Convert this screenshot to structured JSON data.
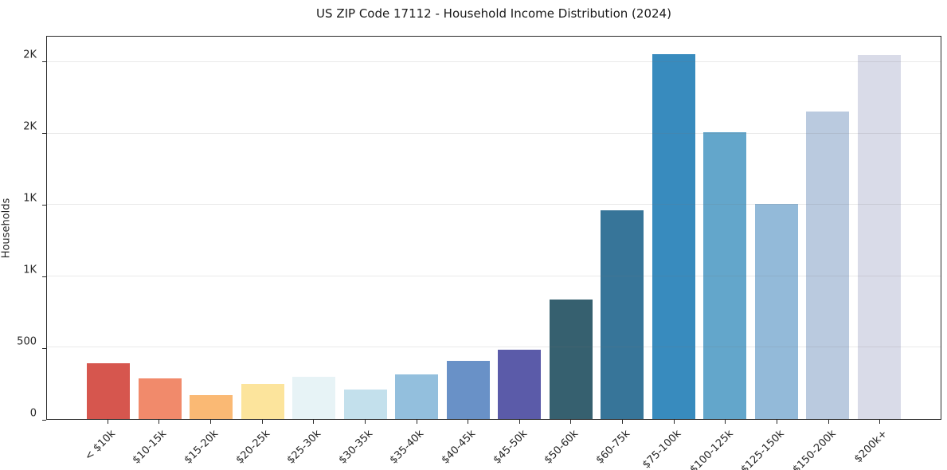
{
  "chart_data": {
    "type": "bar",
    "title": "US ZIP Code 17112 - Household Income Distribution (2024)",
    "xlabel": "",
    "ylabel": "Households",
    "categories": [
      "< $10k",
      "$10-15k",
      "$15-20k",
      "$20-25k",
      "$25-30k",
      "$30-35k",
      "$35-40k",
      "$40-45k",
      "$45-50k",
      "$50-60k",
      "$60-75k",
      "$75-100k",
      "$100-125k",
      "$125-150k",
      "$150-200k",
      "$200k+"
    ],
    "values": [
      390,
      285,
      165,
      245,
      295,
      205,
      315,
      410,
      485,
      840,
      1465,
      2555,
      2010,
      1505,
      2155,
      2550
    ],
    "bar_colors": [
      "#D6564E",
      "#F18A6B",
      "#FAB974",
      "#FCE49C",
      "#E7F3F6",
      "#C3E0EC",
      "#93BFDD",
      "#6991C7",
      "#5B5BA9",
      "#36606F",
      "#377599",
      "#388BBE",
      "#63A6CB",
      "#93BAD9",
      "#BACADF",
      "#D9DBE8"
    ],
    "ylim": [
      0,
      2680
    ],
    "yticks": [
      {
        "value": 0,
        "label": "0"
      },
      {
        "value": 500,
        "label": "500"
      },
      {
        "value": 1000,
        "label": "1K"
      },
      {
        "value": 1500,
        "label": "1K"
      },
      {
        "value": 2000,
        "label": "2K"
      },
      {
        "value": 2500,
        "label": "2K"
      }
    ],
    "grid": "horizontal",
    "legend": "none",
    "spine_color": "#2b2b2b",
    "text_color": "#262626"
  }
}
